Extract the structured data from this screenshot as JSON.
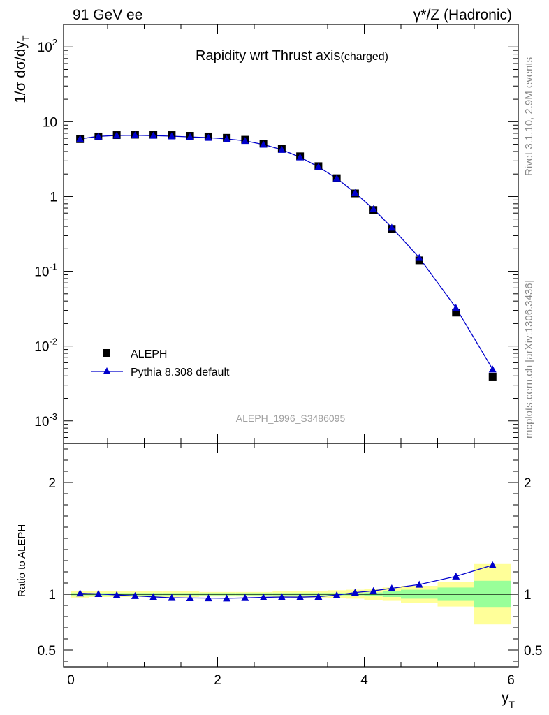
{
  "header": {
    "left_label": "91 GeV ee",
    "right_label": "γ*/Z (Hadronic)"
  },
  "side_labels": {
    "rivet": "Rivet 3.1.10,  2.9M events",
    "mcplots": "mcplots.cern.ch [arXiv:1306.3436]"
  },
  "chart_data": [
    {
      "type": "scatter",
      "title": "Rapidity wrt Thrust axis",
      "title_sub": "(charged)",
      "ylabel": "1/σ dσ/dy",
      "ylabel_sub": "T",
      "yscale": "log",
      "ylim": [
        0.0005,
        200
      ],
      "xlim": [
        -0.1,
        6.1
      ],
      "y_tick_labels": [
        {
          "base": "10",
          "exp": "-3",
          "value": 0.001
        },
        {
          "base": "10",
          "exp": "-2",
          "value": 0.01
        },
        {
          "base": "10",
          "exp": "-1",
          "value": 0.1
        },
        {
          "base": "1",
          "exp": "",
          "value": 1
        },
        {
          "base": "10",
          "exp": "",
          "value": 10
        },
        {
          "base": "10",
          "exp": "2",
          "value": 100
        }
      ],
      "watermark": "ALEPH_1996_S3486095",
      "legend_position": "lower-left",
      "series": [
        {
          "name": "ALEPH",
          "marker": "square",
          "color": "#000000",
          "x": [
            0.125,
            0.375,
            0.625,
            0.875,
            1.125,
            1.375,
            1.625,
            1.875,
            2.125,
            2.375,
            2.625,
            2.875,
            3.125,
            3.375,
            3.625,
            3.875,
            4.125,
            4.375,
            4.75,
            5.25,
            5.75
          ],
          "y": [
            5.85,
            6.35,
            6.62,
            6.7,
            6.69,
            6.62,
            6.48,
            6.35,
            6.1,
            5.75,
            5.1,
            4.35,
            3.45,
            2.55,
            1.76,
            1.1,
            0.66,
            0.37,
            0.14,
            0.028,
            0.0039
          ]
        },
        {
          "name": "Pythia 8.308 default",
          "marker": "triangle",
          "color": "#0000cc",
          "x": [
            0.125,
            0.375,
            0.625,
            0.875,
            1.125,
            1.375,
            1.625,
            1.875,
            2.125,
            2.375,
            2.625,
            2.875,
            3.125,
            3.375,
            3.625,
            3.875,
            4.125,
            4.375,
            4.75,
            5.25,
            5.75
          ],
          "y": [
            5.9,
            6.37,
            6.55,
            6.6,
            6.53,
            6.42,
            6.27,
            6.13,
            5.88,
            5.56,
            4.96,
            4.23,
            3.36,
            2.49,
            1.75,
            1.12,
            0.68,
            0.385,
            0.152,
            0.0325,
            0.0049
          ]
        }
      ]
    },
    {
      "type": "line",
      "ylabel": "Ratio to ALEPH",
      "xlabel": "y",
      "xlabel_sub": "T",
      "xlim": [
        -0.1,
        6.1
      ],
      "ylim": [
        0.35,
        2.35
      ],
      "x_tick_labels": [
        "0",
        "2",
        "4",
        "6"
      ],
      "y_tick_labels": [
        "0.5",
        "1",
        "2"
      ],
      "reference_line": 1,
      "bands": {
        "edges": [
          0,
          0.25,
          0.5,
          0.75,
          1.0,
          1.25,
          1.5,
          1.75,
          2.0,
          2.25,
          2.5,
          2.75,
          3.0,
          3.25,
          3.5,
          3.75,
          4.0,
          4.25,
          4.5,
          5.0,
          5.5,
          6.0
        ],
        "stat_color": "#99ff99",
        "total_color": "#ffff99",
        "stat_halfwidth": [
          0.01,
          0.01,
          0.01,
          0.01,
          0.01,
          0.01,
          0.01,
          0.01,
          0.01,
          0.01,
          0.01,
          0.01,
          0.01,
          0.01,
          0.01,
          0.01,
          0.015,
          0.025,
          0.04,
          0.06,
          0.12
        ],
        "total_halfwidth": [
          0.03,
          0.025,
          0.025,
          0.025,
          0.025,
          0.025,
          0.025,
          0.02,
          0.02,
          0.02,
          0.02,
          0.025,
          0.03,
          0.03,
          0.035,
          0.04,
          0.05,
          0.06,
          0.075,
          0.11,
          0.27
        ]
      },
      "series": [
        {
          "name": "Pythia 8.308 default",
          "marker": "triangle",
          "color": "#0000cc",
          "x": [
            0.125,
            0.375,
            0.625,
            0.875,
            1.125,
            1.375,
            1.625,
            1.875,
            2.125,
            2.375,
            2.625,
            2.875,
            3.125,
            3.375,
            3.625,
            3.875,
            4.125,
            4.375,
            4.75,
            5.25,
            5.75
          ],
          "y": [
            1.008,
            1.003,
            0.993,
            0.985,
            0.976,
            0.968,
            0.966,
            0.965,
            0.963,
            0.967,
            0.972,
            0.975,
            0.974,
            0.978,
            0.992,
            1.015,
            1.03,
            1.053,
            1.087,
            1.16,
            1.26
          ]
        }
      ]
    }
  ]
}
